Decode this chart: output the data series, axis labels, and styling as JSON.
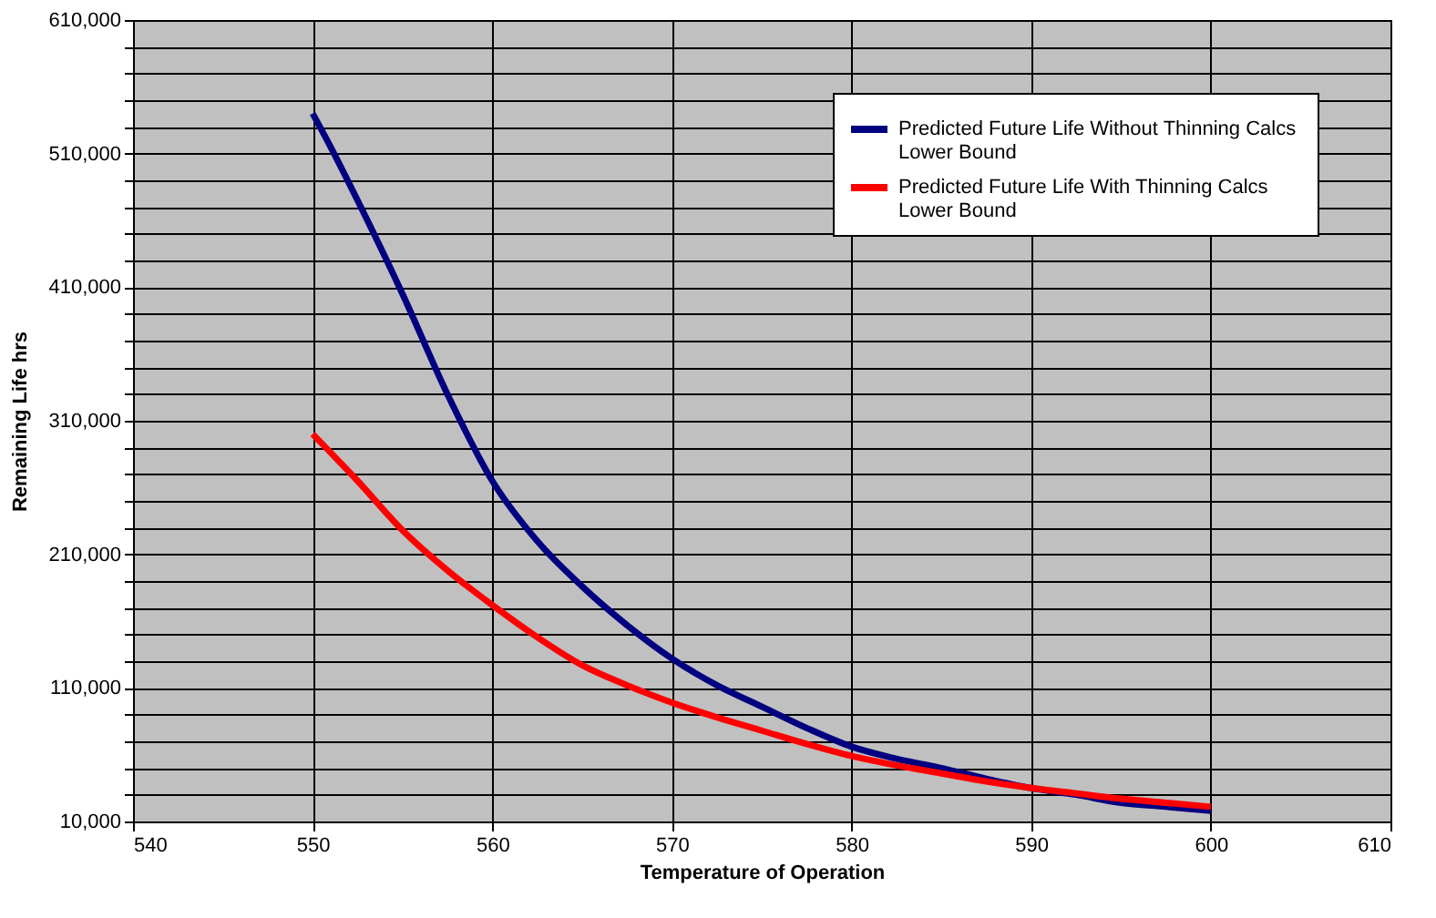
{
  "chart_data": {
    "type": "line",
    "xlabel": "Temperature of Operation",
    "ylabel": "Remaining Life hrs",
    "xlim": [
      540,
      610
    ],
    "xticks": [
      540,
      550,
      560,
      570,
      580,
      590,
      600,
      610
    ],
    "ylim": [
      10000,
      610000
    ],
    "yticks": [
      {
        "value": 10000,
        "label": "10,000"
      },
      {
        "value": 30000,
        "label": null
      },
      {
        "value": 50000,
        "label": null
      },
      {
        "value": 70000,
        "label": null
      },
      {
        "value": 90000,
        "label": null
      },
      {
        "value": 110000,
        "label": "110,000"
      },
      {
        "value": 130000,
        "label": null
      },
      {
        "value": 150000,
        "label": null
      },
      {
        "value": 170000,
        "label": null
      },
      {
        "value": 190000,
        "label": null
      },
      {
        "value": 210000,
        "label": "210,000"
      },
      {
        "value": 230000,
        "label": null
      },
      {
        "value": 250000,
        "label": null
      },
      {
        "value": 270000,
        "label": null
      },
      {
        "value": 290000,
        "label": null
      },
      {
        "value": 310000,
        "label": "310,000"
      },
      {
        "value": 330000,
        "label": null
      },
      {
        "value": 350000,
        "label": null
      },
      {
        "value": 370000,
        "label": null
      },
      {
        "value": 390000,
        "label": null
      },
      {
        "value": 410000,
        "label": "410,000"
      },
      {
        "value": 430000,
        "label": null
      },
      {
        "value": 450000,
        "label": null
      },
      {
        "value": 470000,
        "label": null
      },
      {
        "value": 490000,
        "label": null
      },
      {
        "value": 510000,
        "label": "510,000"
      },
      {
        "value": 530000,
        "label": null
      },
      {
        "value": 550000,
        "label": null
      },
      {
        "value": 570000,
        "label": null
      },
      {
        "value": 590000,
        "label": null
      },
      {
        "value": 610000,
        "label": "610,000"
      }
    ],
    "grid": true,
    "legend": "top right",
    "marker": "none",
    "line_style": "solid",
    "x": [
      550,
      551,
      552.5,
      555,
      557.5,
      560,
      562.5,
      565,
      567.5,
      570,
      572.5,
      575,
      577.5,
      580,
      582.5,
      585,
      587.5,
      590,
      592.5,
      595,
      597.5,
      600
    ],
    "series": [
      {
        "name": "Predicted Future Life  Without Thinning Calcs\nLower Bound",
        "color": "#000080",
        "values": [
          540000,
          515000,
          475000,
          405000,
          330000,
          265000,
          220000,
          186000,
          157000,
          132000,
          112000,
          96000,
          80000,
          66000,
          57000,
          50000,
          42000,
          35000,
          30000,
          24000,
          21000,
          18000
        ]
      },
      {
        "name": "Predicted Future Life With Thinning Calcs\nLower Bound",
        "color": "#ff0000",
        "x": [
          550,
          552.5,
          555,
          557.5,
          560,
          562.5,
          565,
          567.5,
          570,
          572.5,
          575,
          577.5,
          580,
          582.5,
          585,
          587.5,
          590,
          592.5,
          595,
          597.5,
          600
        ],
        "values": [
          300000,
          265000,
          228000,
          198000,
          172000,
          148000,
          127000,
          112000,
          99000,
          88000,
          78000,
          68000,
          59000,
          52000,
          46000,
          40000,
          35000,
          31000,
          27000,
          24000,
          21000
        ]
      }
    ]
  }
}
